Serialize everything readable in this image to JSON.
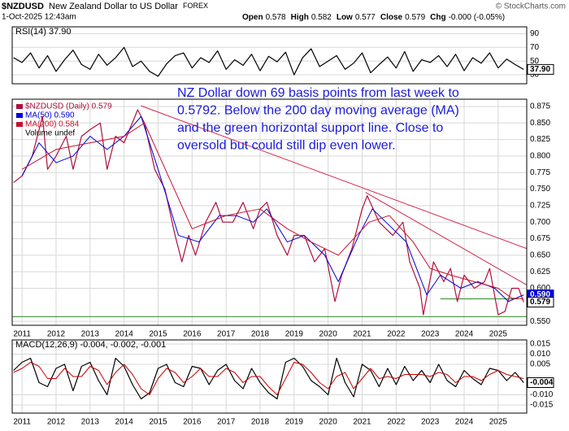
{
  "header": {
    "symbol": "$NZDUSD",
    "name": "New Zealand Dollar to US Dollar",
    "exchange": "FOREX",
    "date": "1-Oct-2025 12:43am",
    "quote": [
      {
        "label": "Open",
        "value": 0.578
      },
      {
        "label": "High",
        "value": 0.582
      },
      {
        "label": "Low",
        "value": 0.577
      },
      {
        "label": "Close",
        "value": 0.579
      },
      {
        "label": "Chg",
        "value": "-0.000 (-0.05%)"
      }
    ],
    "copyright": "© StockCharts.com"
  },
  "chart_data": [
    {
      "type": "line",
      "legend": "RSI(14) 37.90",
      "xlim": [
        2010.71,
        2025.84
      ],
      "ylim": [
        17,
        100
      ],
      "yticks": [
        90,
        70,
        50,
        30
      ],
      "grid": true,
      "x": [
        2010.75,
        2011,
        2011.25,
        2011.5,
        2011.75,
        2012,
        2012.25,
        2012.5,
        2012.75,
        2013,
        2013.25,
        2013.5,
        2013.75,
        2014,
        2014.25,
        2014.5,
        2014.75,
        2015,
        2015.25,
        2015.5,
        2015.75,
        2016,
        2016.25,
        2016.5,
        2016.75,
        2017,
        2017.25,
        2017.5,
        2017.75,
        2018,
        2018.25,
        2018.5,
        2018.75,
        2019,
        2019.25,
        2019.5,
        2019.75,
        2020,
        2020.25,
        2020.5,
        2020.75,
        2021,
        2021.25,
        2021.5,
        2021.75,
        2022,
        2022.25,
        2022.5,
        2022.75,
        2023,
        2023.25,
        2023.5,
        2023.75,
        2024,
        2024.25,
        2024.5,
        2024.75,
        2025,
        2025.25,
        2025.5,
        2025.75
      ],
      "series": [
        {
          "color": "#000000",
          "values": [
            55,
            48,
            62,
            40,
            58,
            35,
            52,
            66,
            45,
            38,
            60,
            44,
            55,
            70,
            42,
            50,
            35,
            28,
            46,
            58,
            62,
            40,
            55,
            48,
            65,
            38,
            52,
            44,
            60,
            36,
            57,
            49,
            63,
            30,
            55,
            68,
            42,
            50,
            58,
            38,
            47,
            62,
            33,
            45,
            56,
            40,
            64,
            35,
            52,
            48,
            58,
            42,
            60,
            36,
            55,
            47,
            62,
            40,
            53,
            45,
            37.9
          ]
        }
      ],
      "markers": [
        {
          "value": 37.9,
          "label": "37.90",
          "color": "#000000"
        }
      ]
    },
    {
      "type": "line",
      "xlim": [
        2010.71,
        2025.84
      ],
      "ylim": [
        0.544,
        0.886
      ],
      "yticks": [
        0.875,
        {
          "value": 0.85,
          "label": "0.850"
        },
        0.825,
        {
          "value": 0.8,
          "label": "0.800"
        },
        0.775,
        {
          "value": 0.75,
          "label": "0.750"
        },
        0.725,
        {
          "value": 0.7,
          "label": "0.700"
        },
        0.675,
        {
          "value": 0.65,
          "label": "0.650"
        },
        0.625,
        {
          "value": 0.6,
          "label": "0.600"
        },
        {
          "value": 0.55,
          "label": "0.550"
        }
      ],
      "xticks": [
        2011,
        2012,
        2013,
        2014,
        2015,
        2016,
        2017,
        2018,
        2019,
        2020,
        2021,
        2022,
        2023,
        2024,
        2025
      ],
      "grid": true,
      "series": [
        {
          "name": "$NZDUSD (Daily) 0.579",
          "color": "#b0103c",
          "x": [
            2010.75,
            2011,
            2011.3,
            2011.6,
            2011.75,
            2012,
            2012.3,
            2012.5,
            2012.75,
            2013,
            2013.3,
            2013.5,
            2013.75,
            2014,
            2014.4,
            2014.6,
            2014.9,
            2015.2,
            2015.5,
            2015.7,
            2015.9,
            2016.1,
            2016.4,
            2016.7,
            2016.9,
            2017.2,
            2017.5,
            2017.8,
            2018,
            2018.2,
            2018.5,
            2018.8,
            2019,
            2019.3,
            2019.6,
            2019.9,
            2020.2,
            2020.4,
            2020.7,
            2021,
            2021.15,
            2021.5,
            2021.9,
            2022.2,
            2022.4,
            2022.7,
            2022.8,
            2023.1,
            2023.4,
            2023.6,
            2023.8,
            2024,
            2024.3,
            2024.6,
            2024.75,
            2025,
            2025.2,
            2025.4,
            2025.6,
            2025.75
          ],
          "values": [
            0.76,
            0.77,
            0.8,
            0.86,
            0.78,
            0.8,
            0.83,
            0.78,
            0.83,
            0.84,
            0.85,
            0.78,
            0.83,
            0.82,
            0.87,
            0.85,
            0.78,
            0.75,
            0.68,
            0.64,
            0.68,
            0.65,
            0.7,
            0.73,
            0.7,
            0.7,
            0.73,
            0.69,
            0.72,
            0.73,
            0.68,
            0.65,
            0.68,
            0.68,
            0.64,
            0.66,
            0.58,
            0.62,
            0.66,
            0.72,
            0.74,
            0.7,
            0.68,
            0.7,
            0.64,
            0.6,
            0.56,
            0.64,
            0.61,
            0.63,
            0.58,
            0.62,
            0.6,
            0.61,
            0.63,
            0.56,
            0.565,
            0.6,
            0.6,
            0.579
          ]
        },
        {
          "name": "MA(50) 0.590",
          "color": "#0000dd",
          "x": [
            2011,
            2011.5,
            2012,
            2012.5,
            2013,
            2013.5,
            2014,
            2014.5,
            2015,
            2015.6,
            2016.2,
            2016.8,
            2017.3,
            2017.8,
            2018.2,
            2018.8,
            2019.3,
            2019.9,
            2020.3,
            2020.9,
            2021.3,
            2021.9,
            2022.3,
            2022.9,
            2023.3,
            2023.9,
            2024.4,
            2024.9,
            2025.3,
            2025.75
          ],
          "values": [
            0.77,
            0.82,
            0.79,
            0.8,
            0.83,
            0.81,
            0.83,
            0.86,
            0.78,
            0.68,
            0.67,
            0.71,
            0.71,
            0.7,
            0.72,
            0.67,
            0.68,
            0.65,
            0.61,
            0.68,
            0.72,
            0.69,
            0.67,
            0.59,
            0.62,
            0.6,
            0.61,
            0.6,
            0.58,
            0.59
          ]
        },
        {
          "name": "MA(200) 0.584",
          "color": "#c8102e",
          "x": [
            2011,
            2012,
            2013,
            2014,
            2014.6,
            2015.3,
            2016,
            2017,
            2018,
            2018.8,
            2019.5,
            2020.3,
            2021.2,
            2021.8,
            2022.5,
            2023,
            2023.6,
            2024.3,
            2025,
            2025.4,
            2025.75
          ],
          "values": [
            0.78,
            0.81,
            0.82,
            0.83,
            0.85,
            0.77,
            0.69,
            0.71,
            0.72,
            0.69,
            0.67,
            0.65,
            0.7,
            0.71,
            0.67,
            0.63,
            0.62,
            0.61,
            0.6,
            0.585,
            0.584
          ]
        }
      ],
      "volume_legend": "Volume undef",
      "lines": [
        {
          "color": "#d6204a",
          "x": [
            2014.5,
            2025.84
          ],
          "values": [
            0.876,
            0.66
          ]
        },
        {
          "color": "#d6204a",
          "x": [
            2021.1,
            2025.84
          ],
          "values": [
            0.745,
            0.605
          ]
        },
        {
          "color": "#2e8b2e",
          "x": [
            2010.71,
            2025.84
          ],
          "values": [
            0.557,
            0.557
          ]
        },
        {
          "color": "#2e8b2e",
          "x": [
            2023.3,
            2025.6
          ],
          "values": [
            0.584,
            0.584
          ]
        }
      ],
      "markers": [
        {
          "value": 0.59,
          "label": "0.590",
          "color": "#0000dd"
        },
        {
          "value": 0.579,
          "label": "0.579",
          "color": "#000000"
        }
      ],
      "annotation": [
        "NZ Dollar down 69 basis points from last week to",
        "0.5792. Below the 200 day moving average (MA)",
        "and the green horizontal support line. Close to",
        "oversold but could still dip even lower."
      ]
    },
    {
      "type": "line",
      "legend": "MACD(12,26,9) -0.004, -0.002, -0.001",
      "xlim": [
        2010.71,
        2025.84
      ],
      "ylim": [
        -0.019,
        0.017
      ],
      "yticks": [
        0.015,
        {
          "value": 0.01,
          "label": "0.010"
        },
        0.005,
        {
          "value": -0.01,
          "label": "-0.010"
        },
        -0.015
      ],
      "xticks": [
        2011,
        2012,
        2013,
        2014,
        2015,
        2016,
        2017,
        2018,
        2019,
        2020,
        2021,
        2022,
        2023,
        2024,
        2025
      ],
      "grid": true,
      "x": [
        2010.75,
        2011,
        2011.25,
        2011.5,
        2011.75,
        2012,
        2012.25,
        2012.5,
        2012.75,
        2013,
        2013.25,
        2013.5,
        2013.75,
        2014,
        2014.25,
        2014.5,
        2014.75,
        2015,
        2015.25,
        2015.5,
        2015.75,
        2016,
        2016.25,
        2016.5,
        2016.75,
        2017,
        2017.25,
        2017.5,
        2017.75,
        2018,
        2018.25,
        2018.5,
        2018.75,
        2019,
        2019.25,
        2019.5,
        2019.75,
        2020,
        2020.25,
        2020.5,
        2020.75,
        2021,
        2021.25,
        2021.5,
        2021.75,
        2022,
        2022.25,
        2022.5,
        2022.75,
        2023,
        2023.25,
        2023.5,
        2023.75,
        2024,
        2024.25,
        2024.5,
        2024.75,
        2025,
        2025.25,
        2025.5,
        2025.75
      ],
      "series": [
        {
          "color": "#000000",
          "values": [
            0.002,
            0.006,
            0.008,
            -0.004,
            -0.006,
            0.003,
            0.005,
            -0.008,
            0.004,
            0.006,
            -0.003,
            -0.01,
            0.008,
            0.004,
            -0.005,
            -0.012,
            -0.009,
            0.003,
            0.005,
            -0.004,
            -0.006,
            0.004,
            0.003,
            -0.005,
            0.002,
            0.005,
            -0.003,
            -0.007,
            0.003,
            -0.004,
            -0.009,
            -0.012,
            0.006,
            0.008,
            0.004,
            -0.003,
            -0.006,
            -0.01,
            0.008,
            -0.004,
            -0.011,
            0.005,
            0.002,
            -0.006,
            0.003,
            -0.005,
            0.004,
            -0.003,
            0.002,
            -0.004,
            0.005,
            -0.003,
            -0.006,
            0.002,
            -0.002,
            -0.005,
            0.003,
            0.002,
            -0.003,
            0.001,
            -0.004
          ]
        },
        {
          "color": "#cc0000",
          "values": [
            0.001,
            0.003,
            0.006,
            0.004,
            -0.002,
            -0.002,
            0.003,
            -0.001,
            -0.001,
            0.004,
            0.002,
            -0.005,
            0.001,
            0.005,
            0,
            -0.007,
            -0.01,
            -0.002,
            0.003,
            0.001,
            -0.004,
            -0.001,
            0.003,
            -0.001,
            -0.001,
            0.003,
            0.001,
            -0.004,
            -0.001,
            -0.001,
            -0.006,
            -0.01,
            -0.002,
            0.006,
            0.005,
            0.001,
            -0.004,
            -0.007,
            -0.001,
            0.001,
            -0.007,
            -0.002,
            0.003,
            -0.002,
            -0.001,
            -0.002,
            0,
            0,
            0,
            -0.001,
            0.001,
            0,
            -0.004,
            -0.001,
            -0.001,
            -0.003,
            0,
            0.002,
            0,
            -0.001,
            -0.002
          ]
        }
      ],
      "markers": [
        {
          "value": -0.004,
          "label": "-0.004",
          "color": "#000000"
        }
      ]
    }
  ]
}
